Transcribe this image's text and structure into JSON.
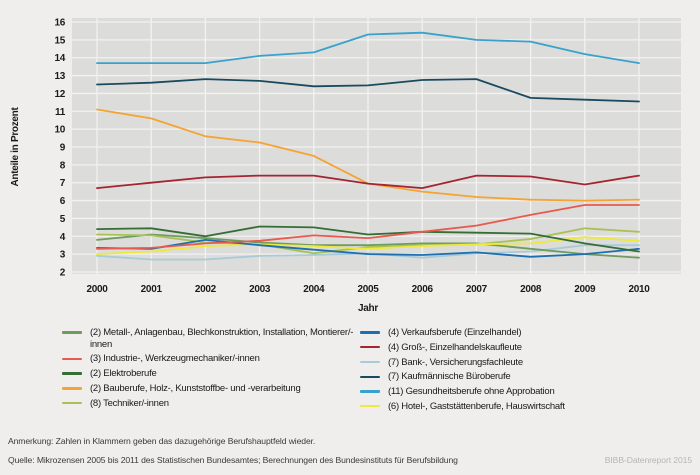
{
  "chart_data": {
    "type": "line",
    "x": [
      2000,
      2001,
      2002,
      2003,
      2004,
      2005,
      2006,
      2007,
      2008,
      2009,
      2010
    ],
    "xlabel": "Jahr",
    "ylabel": "Anteile in Prozent",
    "ylim": [
      2,
      16
    ],
    "y_tick_step": 1,
    "grid": true,
    "legend_position": "bottom",
    "series": [
      {
        "key": "metall",
        "name": "(2) Metall-, Anlagenbau, Blechkonstruktion, Installation, Montierer/-innen",
        "color": "#6e9b5e",
        "values": [
          3.8,
          4.1,
          3.9,
          3.65,
          3.5,
          3.5,
          3.6,
          3.6,
          3.3,
          3.0,
          2.8
        ]
      },
      {
        "key": "industrie",
        "name": "(3) Industrie-, Werkzeugmechaniker/-innen",
        "color": "#e8594f",
        "values": [
          3.3,
          3.35,
          3.6,
          3.75,
          4.05,
          3.9,
          4.25,
          4.6,
          5.2,
          5.75,
          5.75
        ]
      },
      {
        "key": "elektro",
        "name": "(2) Elektroberufe",
        "color": "#346e35",
        "values": [
          4.4,
          4.45,
          4.0,
          4.55,
          4.5,
          4.1,
          4.25,
          4.2,
          4.15,
          3.6,
          3.15
        ]
      },
      {
        "key": "bau",
        "name": "(2) Bauberufe, Holz-, Kunststoffbe- und -verarbeitung",
        "color": "#f5a333",
        "values": [
          11.1,
          10.6,
          9.6,
          9.25,
          8.5,
          6.95,
          6.5,
          6.2,
          6.05,
          6.0,
          6.05
        ]
      },
      {
        "key": "techniker",
        "name": "(8) Techniker/-innen",
        "color": "#a9c153",
        "values": [
          4.1,
          4.05,
          3.65,
          3.55,
          3.05,
          3.4,
          3.5,
          3.55,
          3.85,
          4.45,
          4.25
        ]
      },
      {
        "key": "verkauf",
        "name": "(4) Verkaufsberufe (Einzelhandel)",
        "color": "#1e6fb0",
        "values": [
          3.35,
          3.3,
          3.8,
          3.5,
          3.25,
          3.0,
          2.95,
          3.1,
          2.85,
          3.0,
          3.3
        ]
      },
      {
        "key": "gross",
        "name": "(4) Groß-, Einzelhandelskaufleute",
        "color": "#a52431",
        "values": [
          6.7,
          7.0,
          7.3,
          7.4,
          7.4,
          6.95,
          6.7,
          7.4,
          7.35,
          6.9,
          7.4
        ]
      },
      {
        "key": "bank",
        "name": "(7) Bank-, Versicherungsfachleute",
        "color": "#a7cbd9",
        "values": [
          2.9,
          2.7,
          2.7,
          2.9,
          2.95,
          3.05,
          2.8,
          3.05,
          3.15,
          3.5,
          3.5
        ]
      },
      {
        "key": "kaufm",
        "name": "(7) Kaufmännische Büroberufe",
        "color": "#1a4a5f",
        "values": [
          12.5,
          12.6,
          12.8,
          12.7,
          12.4,
          12.45,
          12.75,
          12.8,
          11.75,
          11.65,
          11.55
        ]
      },
      {
        "key": "gesundheit",
        "name": "(11) Gesundheitsberufe ohne Approbation",
        "color": "#38a2cc",
        "values": [
          13.7,
          13.7,
          13.7,
          14.1,
          14.3,
          15.3,
          15.4,
          15.0,
          14.9,
          14.2,
          13.7
        ]
      },
      {
        "key": "hotel",
        "name": "(6) Hotel-, Gaststättenberufe, Hauswirtschaft",
        "color": "#ede93e",
        "values": [
          3.0,
          3.15,
          3.45,
          3.55,
          3.45,
          3.3,
          3.45,
          3.55,
          3.6,
          3.95,
          3.75
        ]
      }
    ],
    "draw_order": [
      "bank",
      "metall",
      "techniker",
      "hotel",
      "verkauf",
      "elektro",
      "industrie",
      "bau",
      "gross",
      "kaufm",
      "gesundheit"
    ],
    "legend_columns": {
      "left": [
        "metall",
        "industrie",
        "elektro",
        "bau",
        "techniker"
      ],
      "right": [
        "verkauf",
        "gross",
        "bank",
        "kaufm",
        "gesundheit",
        "hotel"
      ]
    }
  },
  "footer": {
    "note": "Anmerkung: Zahlen in Klammern geben das dazugehörige Berufshauptfeld wieder.",
    "source": "Quelle: Mikrozensen 2005 bis 2011 des Statistischen Bundesamtes; Berechnungen des Bundesinstituts für Berufsbildung",
    "credit": "BIBB-Datenreport 2015"
  },
  "colors": {
    "page_bg": "#efeeec",
    "plot_bg": "#dcdcda",
    "grid": "#f3f2f0"
  }
}
